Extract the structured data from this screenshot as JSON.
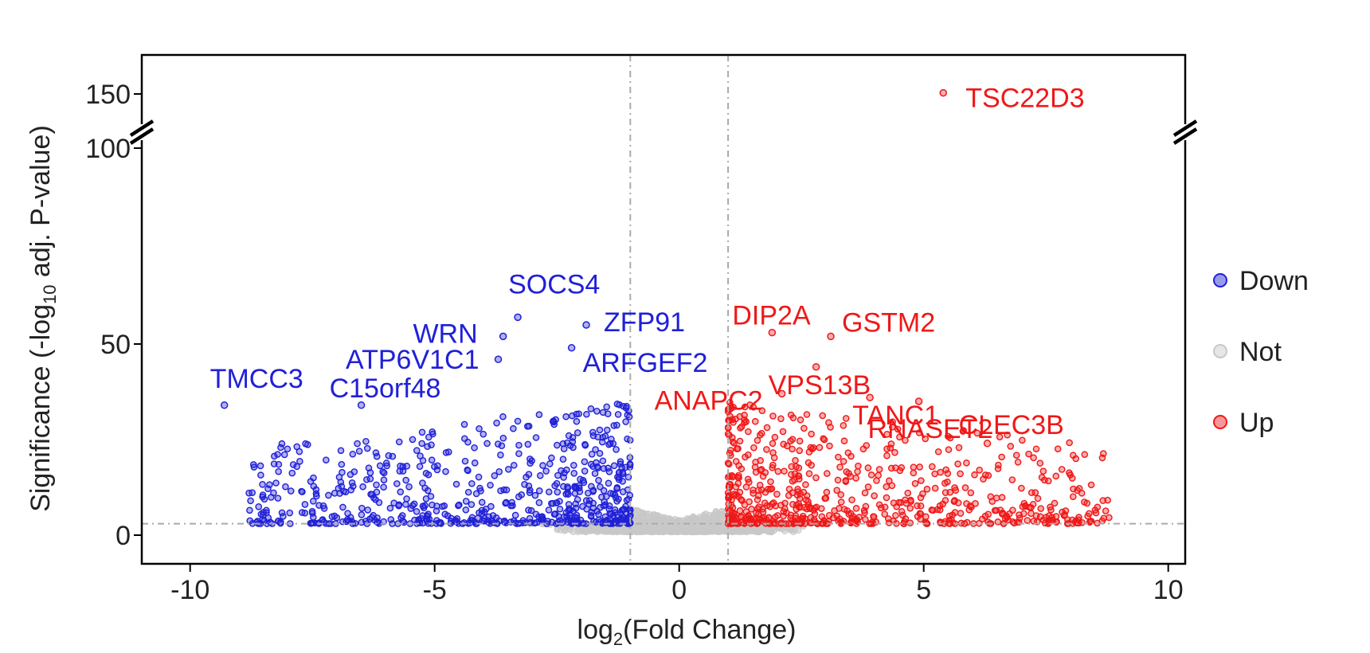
{
  "chart_data": {
    "type": "scatter",
    "title": "",
    "xlabel": "log2(Fold Change)",
    "ylabel": "Significance (-log10 adj. P-value)",
    "xlim": [
      -10.5,
      10.5
    ],
    "ylim": [
      -5,
      160
    ],
    "y_axis_break": [
      60,
      100
    ],
    "x_ticks": [
      -10,
      -5,
      0,
      5,
      10
    ],
    "x_tick_labels": [
      "-10",
      "-5",
      "0",
      "5",
      "10"
    ],
    "y_ticks": [
      0,
      50,
      100,
      150
    ],
    "y_tick_labels": [
      "0",
      "50",
      "100",
      "150"
    ],
    "thresholds": {
      "log2fc": [
        -1,
        1
      ],
      "neg_log10_padj": 3
    },
    "grid": false,
    "legend_position": "right",
    "series": [
      {
        "name": "Down",
        "color": "#2020d8"
      },
      {
        "name": "Not",
        "color": "#c8c8c8"
      },
      {
        "name": "Up",
        "color": "#f01818"
      }
    ],
    "labeled_points": [
      {
        "gene": "TSC22D3",
        "x": 5.4,
        "y": 151,
        "group": "Up"
      },
      {
        "gene": "SOCS4",
        "x": -3.3,
        "y": 57,
        "group": "Down"
      },
      {
        "gene": "WRN",
        "x": -3.6,
        "y": 52,
        "group": "Down"
      },
      {
        "gene": "ZFP91",
        "x": -1.9,
        "y": 55,
        "group": "Down"
      },
      {
        "gene": "ARFGEF2",
        "x": -2.2,
        "y": 49,
        "group": "Down"
      },
      {
        "gene": "ATP6V1C1",
        "x": -3.7,
        "y": 46,
        "group": "Down"
      },
      {
        "gene": "TMCC3",
        "x": -9.3,
        "y": 34,
        "group": "Down"
      },
      {
        "gene": "C15orf48",
        "x": -6.5,
        "y": 34,
        "group": "Down"
      },
      {
        "gene": "DIP2A",
        "x": 1.9,
        "y": 53,
        "group": "Up"
      },
      {
        "gene": "GSTM2",
        "x": 3.1,
        "y": 52,
        "group": "Up"
      },
      {
        "gene": "VPS13B",
        "x": 2.8,
        "y": 44,
        "group": "Up"
      },
      {
        "gene": "ANAPC2",
        "x": 2.1,
        "y": 37,
        "group": "Up"
      },
      {
        "gene": "TANC1",
        "x": 3.9,
        "y": 36,
        "group": "Up"
      },
      {
        "gene": "RNASET2",
        "x": 4.9,
        "y": 35,
        "group": "Up"
      },
      {
        "gene": "CLEC3B",
        "x": 6.3,
        "y": 24,
        "group": "Up"
      }
    ]
  },
  "legend": {
    "items": [
      "Down",
      "Not",
      "Up"
    ]
  }
}
